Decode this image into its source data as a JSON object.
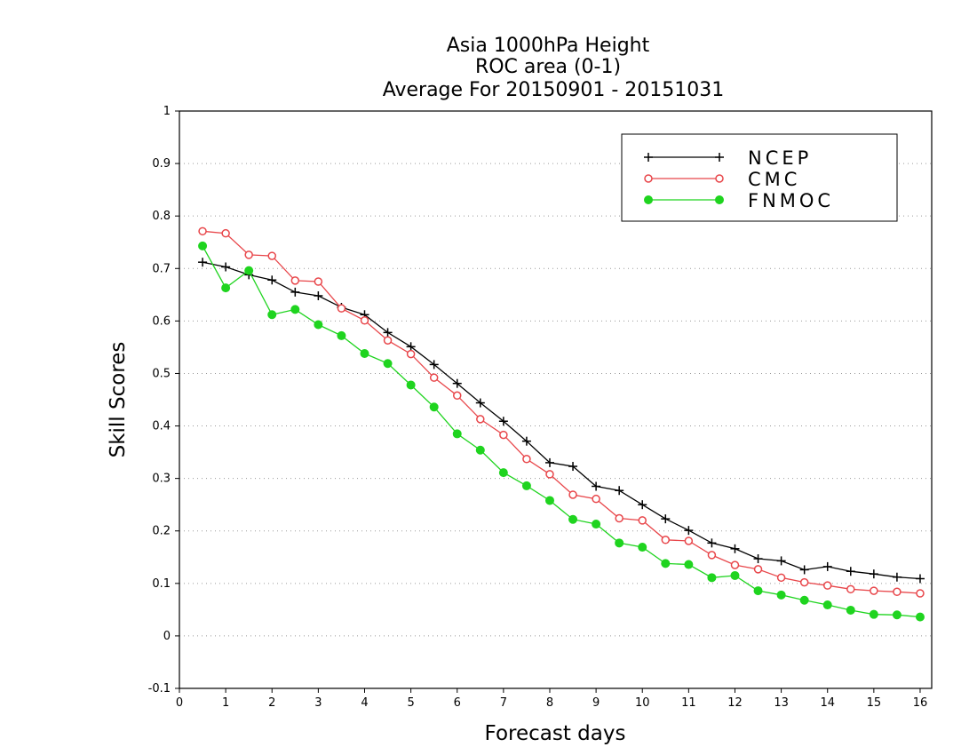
{
  "chart_data": {
    "type": "line",
    "title": [
      "Asia 1000hPa Height",
      "ROC area (0-1)",
      "Average For 20150901 - 20151031"
    ],
    "xlabel": "Forecast days",
    "ylabel": "Skill Scores",
    "xlim": [
      0,
      16.25
    ],
    "ylim": [
      -0.1,
      1
    ],
    "x_ticks": [
      0,
      1,
      2,
      3,
      4,
      5,
      6,
      7,
      8,
      9,
      10,
      11,
      12,
      13,
      14,
      15,
      16
    ],
    "y_ticks": [
      -0.1,
      0,
      0.1,
      0.2,
      0.3,
      0.4,
      0.5,
      0.6,
      0.7,
      0.8,
      0.9,
      1
    ],
    "y_tick_labels": [
      "-0.1",
      "0",
      "0.1",
      "0.2",
      "0.3",
      "0.4",
      "0.5",
      "0.6",
      "0.7",
      "0.8",
      "0.9",
      "1"
    ],
    "grid": "horizontal dotted",
    "legend_position": "top-right",
    "x": [
      0.5,
      1,
      1.5,
      2,
      2.5,
      3,
      3.5,
      4,
      4.5,
      5,
      5.5,
      6,
      6.5,
      7,
      7.5,
      8,
      8.5,
      9,
      9.5,
      10,
      10.5,
      11,
      11.5,
      12,
      12.5,
      13,
      13.5,
      14,
      14.5,
      15,
      15.5,
      16
    ],
    "series": [
      {
        "name": "NCEP",
        "color": "#000000",
        "marker": "plus",
        "values": [
          0.712,
          0.703,
          0.688,
          0.678,
          0.655,
          0.648,
          0.626,
          0.612,
          0.578,
          0.551,
          0.517,
          0.481,
          0.444,
          0.409,
          0.371,
          0.33,
          0.323,
          0.285,
          0.277,
          0.25,
          0.223,
          0.201,
          0.177,
          0.166,
          0.147,
          0.143,
          0.126,
          0.132,
          0.123,
          0.118,
          0.112,
          0.109
        ]
      },
      {
        "name": "CMC",
        "color": "#e8464a",
        "marker": "open-circle",
        "values": [
          0.771,
          0.767,
          0.726,
          0.724,
          0.677,
          0.675,
          0.624,
          0.601,
          0.563,
          0.537,
          0.492,
          0.458,
          0.413,
          0.383,
          0.337,
          0.308,
          0.269,
          0.261,
          0.224,
          0.22,
          0.183,
          0.181,
          0.154,
          0.135,
          0.127,
          0.111,
          0.102,
          0.096,
          0.089,
          0.086,
          0.084,
          0.081
        ]
      },
      {
        "name": "FNMOC",
        "color": "#1fd41f",
        "marker": "filled-circle",
        "values": [
          0.743,
          0.663,
          0.696,
          0.612,
          0.622,
          0.593,
          0.572,
          0.538,
          0.519,
          0.478,
          0.436,
          0.385,
          0.354,
          0.311,
          0.286,
          0.258,
          0.222,
          0.213,
          0.177,
          0.169,
          0.138,
          0.136,
          0.111,
          0.115,
          0.086,
          0.078,
          0.068,
          0.059,
          0.049,
          0.041,
          0.04,
          0.036
        ]
      }
    ]
  }
}
